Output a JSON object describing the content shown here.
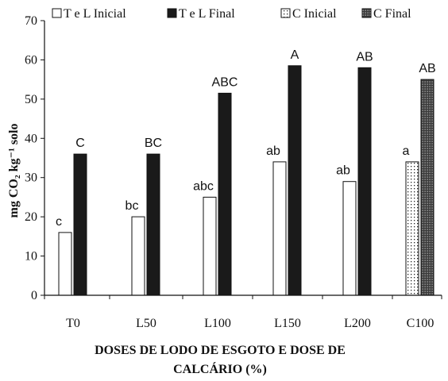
{
  "chart_data": {
    "type": "bar",
    "title": "",
    "xlabel": "DOSES DE LODO DE ESGOTO E DOSE DE CALCÁRIO (%)",
    "xlabel_lines": [
      "DOSES DE LODO DE ESGOTO E DOSE DE",
      "CALCÁRIO (%)"
    ],
    "ylabel": "mg CO₂ kg⁻¹ solo",
    "ylim": [
      0,
      70
    ],
    "yticks": [
      0,
      10,
      20,
      30,
      40,
      50,
      60,
      70
    ],
    "grid": false,
    "legend_position": "top",
    "categories": [
      "T0",
      "L50",
      "L100",
      "L150",
      "L200",
      "C100"
    ],
    "series": [
      {
        "name": "T e L Inicial",
        "style": "white",
        "values": [
          16,
          20,
          25,
          34,
          29,
          null
        ],
        "labels": [
          "c",
          "bc",
          "abc",
          "ab",
          "ab",
          null
        ]
      },
      {
        "name": "T e L Final",
        "style": "black",
        "values": [
          36,
          36,
          51.5,
          58.5,
          58,
          null
        ],
        "labels": [
          "C",
          "BC",
          "ABC",
          "A",
          "AB",
          null
        ]
      },
      {
        "name": "C Inicial",
        "style": "dotted",
        "values": [
          null,
          null,
          null,
          null,
          null,
          34
        ],
        "labels": [
          null,
          null,
          null,
          null,
          null,
          "a"
        ]
      },
      {
        "name": "C Final",
        "style": "dense-dotted",
        "values": [
          null,
          null,
          null,
          null,
          null,
          55
        ],
        "labels": [
          null,
          null,
          null,
          null,
          null,
          "AB"
        ]
      }
    ]
  },
  "colors": {
    "axis": "#111111",
    "bar_dark": "#1a1a1a",
    "bar_light": "#ffffff"
  }
}
